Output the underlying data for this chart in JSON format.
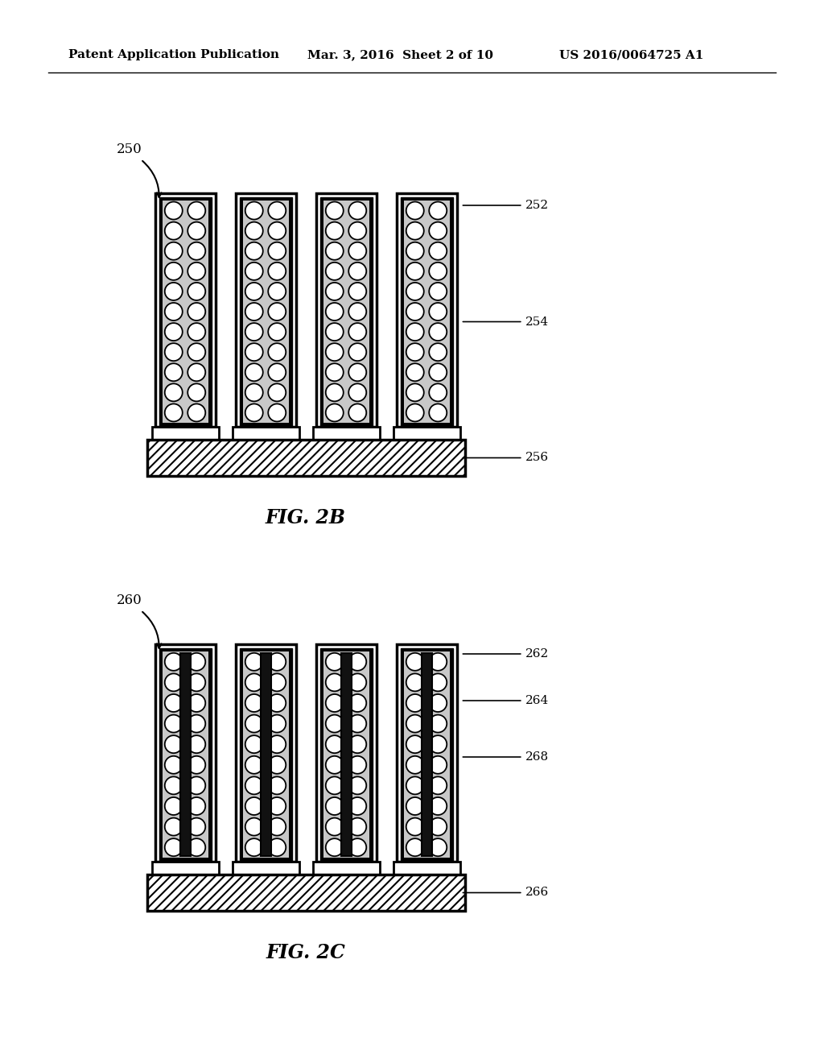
{
  "bg_color": "#ffffff",
  "header_left": "Patent Application Publication",
  "header_mid": "Mar. 3, 2016  Sheet 2 of 10",
  "header_right": "US 2016/0064725 A1",
  "fig2b_label": "FIG. 2B",
  "fig2c_label": "FIG. 2C",
  "ref_250": "250",
  "ref_252": "252",
  "ref_254": "254",
  "ref_256": "256",
  "ref_260": "260",
  "ref_262": "262",
  "ref_264": "264",
  "ref_268": "268",
  "ref_266": "266"
}
